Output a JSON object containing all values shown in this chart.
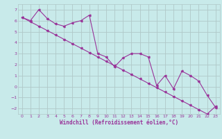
{
  "background_color": "#c8eaea",
  "grid_color": "#b0c8c8",
  "line_color": "#993399",
  "xlabel": "Windchill (Refroidissement éolien,°C)",
  "xlim": [
    -0.5,
    23.5
  ],
  "ylim": [
    -2.5,
    7.5
  ],
  "yticks": [
    -2,
    -1,
    0,
    1,
    2,
    3,
    4,
    5,
    6,
    7
  ],
  "xticks": [
    0,
    1,
    2,
    3,
    4,
    5,
    6,
    7,
    8,
    9,
    10,
    11,
    12,
    13,
    14,
    15,
    16,
    17,
    18,
    19,
    20,
    21,
    22,
    23
  ],
  "series1_x": [
    0,
    1,
    2,
    3,
    4,
    5,
    6,
    7,
    8,
    9,
    10,
    11,
    12,
    13,
    14,
    15,
    16,
    17,
    18,
    19,
    20,
    21,
    22,
    23
  ],
  "series1_y": [
    6.3,
    5.9,
    5.5,
    5.1,
    4.7,
    4.3,
    3.9,
    3.5,
    3.1,
    2.7,
    2.3,
    1.9,
    1.5,
    1.1,
    0.7,
    0.3,
    -0.1,
    -0.5,
    -0.9,
    -1.3,
    -1.7,
    -2.1,
    -2.5,
    -1.8
  ],
  "series2_x": [
    0,
    1,
    2,
    3,
    4,
    5,
    6,
    7,
    8,
    9,
    10,
    11,
    12,
    13,
    14,
    15,
    16,
    17,
    18,
    19,
    20,
    21,
    22,
    23
  ],
  "series2_y": [
    6.3,
    6.0,
    7.0,
    6.2,
    5.7,
    5.5,
    5.8,
    6.0,
    6.5,
    3.0,
    2.7,
    1.8,
    2.6,
    3.0,
    3.0,
    2.7,
    0.1,
    1.0,
    -0.2,
    1.4,
    1.0,
    0.5,
    -0.8,
    -1.9
  ]
}
